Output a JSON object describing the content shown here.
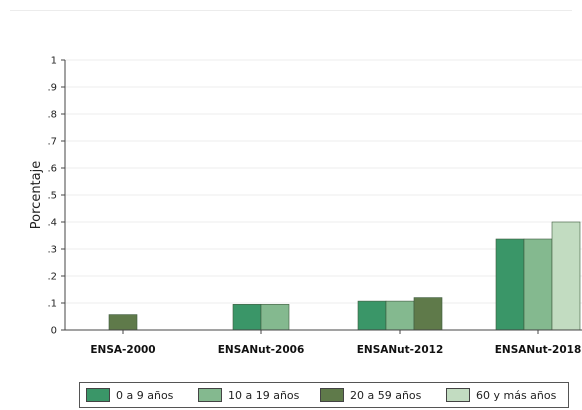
{
  "chart_data": {
    "type": "bar",
    "ylabel": "Porcentaje",
    "ylim": [
      0,
      1
    ],
    "yticks": [
      "0",
      ".1",
      ".2",
      ".3",
      ".4",
      ".5",
      ".6",
      ".7",
      ".8",
      ".9",
      "1"
    ],
    "grid": true,
    "legend_position": "bottom",
    "categories": [
      "ENSA-2000",
      "ENSANut-2006",
      "ENSANut-2012",
      "ENSANut-2018"
    ],
    "series": [
      {
        "name": "0 a 9 años",
        "color": "#3a9668",
        "values": [
          null,
          0.095,
          0.107,
          0.337
        ]
      },
      {
        "name": "10 a 19 años",
        "color": "#84b98f",
        "values": [
          null,
          0.095,
          0.107,
          0.337
        ]
      },
      {
        "name": "20 a 59 años",
        "color": "#5f7a4a",
        "values": [
          0.057,
          null,
          0.12,
          null
        ]
      },
      {
        "name": "60 y más años",
        "color": "#c2dcc1",
        "values": [
          null,
          null,
          null,
          0.4
        ]
      }
    ]
  }
}
